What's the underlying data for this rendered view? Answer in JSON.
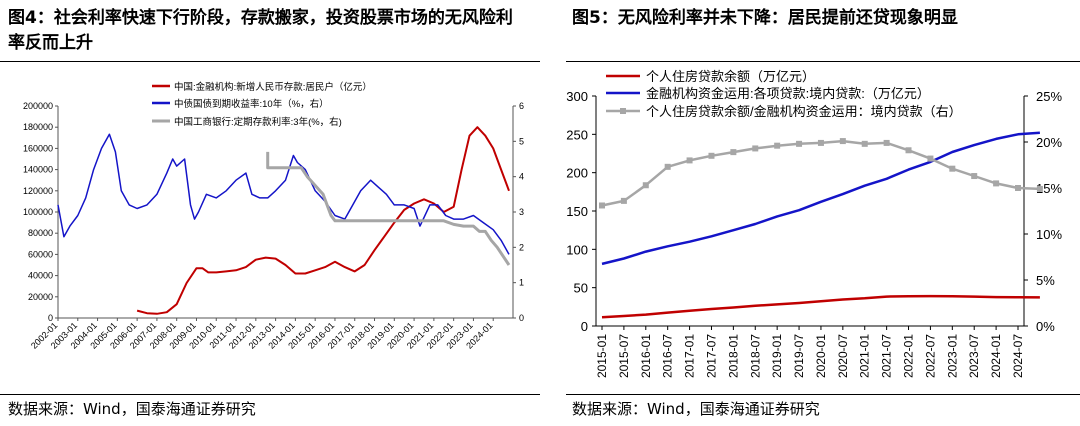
{
  "left_title": "图4：社会利率快速下行阶段，存款搬家，投资股票市场的无风险利率反而上升",
  "right_title": "图5：无风险利率并未下降：居民提前还贷现象明显",
  "left_source": "数据来源：Wind，国泰海通证券研究",
  "right_source": "数据来源：Wind，国泰海通证券研究",
  "colors": {
    "red": "#c00000",
    "blue": "#1414c8",
    "gray": "#a6a6a6"
  },
  "chart_data": [
    {
      "type": "line",
      "ylim": [
        0,
        200000
      ],
      "y2lim": [
        0,
        6
      ],
      "yticks": [
        "0",
        "20000",
        "40000",
        "60000",
        "80000",
        "100000",
        "120000",
        "140000",
        "160000",
        "180000",
        "200000"
      ],
      "y2ticks": [
        "0",
        "1",
        "2",
        "3",
        "4",
        "5",
        "6"
      ],
      "xticks": [
        "2002-01",
        "2003-01",
        "2004-01",
        "2005-01",
        "2006-01",
        "2007-01",
        "2008-01",
        "2009-01",
        "2010-01",
        "2011-01",
        "2012-01",
        "2013-01",
        "2014-01",
        "2015-01",
        "2016-01",
        "2017-01",
        "2018-01",
        "2019-01",
        "2020-01",
        "2021-01",
        "2022-01",
        "2023-01",
        "2024-01"
      ],
      "legend": [
        "中国:金融机构:新增人民币存款:居民户（亿元）",
        "中债国债到期收益率:10年（%，右）",
        "中国工商银行:定期存款利率:3年(%，右)"
      ],
      "series": [
        {
          "name": "中国:金融机构:新增人民币存款:居民户（亿元）",
          "axis": "left",
          "color": "red",
          "x": [
            2006.0,
            2006.5,
            2007.0,
            2007.5,
            2008.0,
            2008.5,
            2009.0,
            2009.3,
            2009.6,
            2010.0,
            2010.5,
            2011.0,
            2011.5,
            2012.0,
            2012.5,
            2013.0,
            2013.5,
            2014.0,
            2014.5,
            2015.0,
            2015.5,
            2016.0,
            2016.5,
            2017.0,
            2017.5,
            2018.0,
            2018.5,
            2019.0,
            2019.5,
            2020.0,
            2020.5,
            2021.0,
            2021.5,
            2022.0,
            2022.4,
            2022.8,
            2023.2,
            2023.6,
            2024.0,
            2024.4,
            2024.8
          ],
          "values": [
            7000,
            4500,
            4000,
            5500,
            13000,
            33000,
            47000,
            47000,
            43000,
            43000,
            44000,
            45000,
            48000,
            55000,
            57000,
            56000,
            50000,
            42000,
            42000,
            45000,
            48000,
            53000,
            48000,
            44000,
            50000,
            64000,
            77000,
            90000,
            102000,
            108000,
            112000,
            108000,
            100000,
            105000,
            140000,
            172000,
            180000,
            172000,
            160000,
            140000,
            120000
          ]
        },
        {
          "name": "中债国债到期收益率:10年（%，右）",
          "axis": "right",
          "color": "blue",
          "x": [
            2002.0,
            2002.3,
            2002.6,
            2003.0,
            2003.4,
            2003.8,
            2004.2,
            2004.6,
            2004.9,
            2005.2,
            2005.6,
            2006.0,
            2006.5,
            2007.0,
            2007.5,
            2007.8,
            2008.0,
            2008.4,
            2008.7,
            2008.9,
            2009.1,
            2009.5,
            2010.0,
            2010.5,
            2011.0,
            2011.5,
            2011.8,
            2012.2,
            2012.6,
            2013.0,
            2013.5,
            2013.9,
            2014.1,
            2014.5,
            2015.0,
            2015.5,
            2016.0,
            2016.5,
            2016.9,
            2017.3,
            2017.8,
            2018.2,
            2018.6,
            2019.0,
            2019.5,
            2020.0,
            2020.3,
            2020.8,
            2021.2,
            2021.6,
            2022.0,
            2022.5,
            2023.0,
            2023.5,
            2024.0,
            2024.4,
            2024.8
          ],
          "values": [
            3.2,
            2.3,
            2.6,
            2.9,
            3.4,
            4.2,
            4.8,
            5.2,
            4.7,
            3.6,
            3.2,
            3.1,
            3.2,
            3.5,
            4.1,
            4.5,
            4.3,
            4.5,
            3.2,
            2.8,
            3.0,
            3.5,
            3.4,
            3.6,
            3.9,
            4.1,
            3.5,
            3.4,
            3.4,
            3.6,
            3.9,
            4.6,
            4.4,
            4.2,
            3.6,
            3.3,
            2.9,
            2.8,
            3.2,
            3.6,
            3.9,
            3.7,
            3.5,
            3.2,
            3.2,
            3.1,
            2.6,
            3.2,
            3.2,
            2.9,
            2.8,
            2.8,
            2.9,
            2.7,
            2.5,
            2.2,
            1.8
          ]
        },
        {
          "name": "中国工商银行:定期存款利率:3年(%，右)",
          "axis": "right",
          "color": "gray",
          "x": [
            2012.6,
            2012.6,
            2014.3,
            2014.6,
            2015.0,
            2015.4,
            2015.8,
            2016.0,
            2017.0,
            2018.0,
            2019.0,
            2020.0,
            2021.0,
            2021.5,
            2022.0,
            2022.5,
            2023.0,
            2023.3,
            2023.6,
            2023.9,
            2024.2,
            2024.5,
            2024.8
          ],
          "values": [
            4.7,
            4.25,
            4.25,
            4.0,
            3.75,
            3.5,
            2.9,
            2.75,
            2.75,
            2.75,
            2.75,
            2.75,
            2.75,
            2.75,
            2.65,
            2.6,
            2.6,
            2.45,
            2.45,
            2.2,
            2.0,
            1.75,
            1.5
          ]
        }
      ]
    },
    {
      "type": "line",
      "ylim": [
        0,
        300
      ],
      "y2lim": [
        0,
        25
      ],
      "yticks": [
        "0",
        "50",
        "100",
        "150",
        "200",
        "250",
        "300"
      ],
      "y2ticks": [
        "0%",
        "5%",
        "10%",
        "15%",
        "20%",
        "25%"
      ],
      "xticks": [
        "2015-01",
        "2015-07",
        "2016-01",
        "2016-07",
        "2017-01",
        "2017-07",
        "2018-01",
        "2018-07",
        "2019-01",
        "2019-07",
        "2020-01",
        "2020-07",
        "2021-01",
        "2021-07",
        "2022-01",
        "2022-07",
        "2023-01",
        "2023-07",
        "2024-01",
        "2024-07"
      ],
      "legend": [
        "个人住房贷款余额（万亿元）",
        "金融机构资金运用:各项贷款:境内贷款:（万亿元）",
        "个人住房贷款余额/金融机构资金运用：境内贷款（右）"
      ],
      "series": [
        {
          "name": "个人住房贷款余额（万亿元）",
          "axis": "left",
          "color": "red",
          "x": [
            0,
            1,
            2,
            3,
            4,
            5,
            6,
            7,
            8,
            9,
            10,
            11,
            12,
            13,
            14,
            15,
            16,
            17,
            18,
            19,
            20
          ],
          "values": [
            11.4,
            13.1,
            14.9,
            17.5,
            19.9,
            22.2,
            24.1,
            26.3,
            28.2,
            30.0,
            32.2,
            34.6,
            36.1,
            38.3,
            38.9,
            39.0,
            38.8,
            38.4,
            37.7,
            37.5,
            37.3
          ]
        },
        {
          "name": "金融机构资金运用:各项贷款:境内贷款:（万亿元）",
          "axis": "left",
          "color": "blue",
          "x": [
            0,
            1,
            2,
            3,
            4,
            5,
            6,
            7,
            8,
            9,
            10,
            11,
            12,
            13,
            14,
            15,
            16,
            17,
            18,
            19,
            20
          ],
          "values": [
            81,
            88,
            97,
            104,
            110,
            117,
            125,
            133,
            143,
            151,
            162,
            172,
            183,
            192,
            204,
            214,
            227,
            236,
            244,
            250,
            252
          ]
        },
        {
          "name": "个人住房贷款余额/金融机构资金运用：境内贷款（右）",
          "axis": "right",
          "color": "gray",
          "x": [
            0,
            1,
            2,
            3,
            4,
            5,
            6,
            7,
            8,
            9,
            10,
            11,
            12,
            13,
            14,
            15,
            16,
            17,
            18,
            19,
            20
          ],
          "values": [
            13.1,
            13.6,
            15.3,
            17.3,
            18.0,
            18.5,
            18.9,
            19.3,
            19.6,
            19.8,
            19.9,
            20.1,
            19.8,
            19.9,
            19.1,
            18.2,
            17.1,
            16.3,
            15.5,
            15.0,
            14.9
          ]
        }
      ]
    }
  ]
}
